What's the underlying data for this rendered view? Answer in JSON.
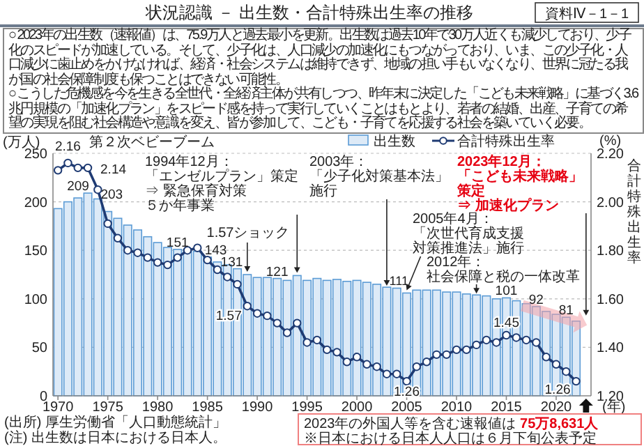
{
  "chart_data": {
    "type": "bar",
    "title": "状況認識 － 出生数・合計特殊出生率の推移",
    "subtitle": "資料Ⅳ－1－1",
    "ylabel": "(万人)",
    "y2label": "(%)",
    "xlabel": "(年)",
    "x": [
      1970,
      1971,
      1972,
      1973,
      1974,
      1975,
      1976,
      1977,
      1978,
      1979,
      1980,
      1981,
      1982,
      1983,
      1984,
      1985,
      1986,
      1987,
      1988,
      1989,
      1990,
      1991,
      1992,
      1993,
      1994,
      1995,
      1996,
      1997,
      1998,
      1999,
      2000,
      2001,
      2002,
      2003,
      2004,
      2005,
      2006,
      2007,
      2008,
      2009,
      2010,
      2011,
      2012,
      2013,
      2014,
      2015,
      2016,
      2017,
      2018,
      2019,
      2020,
      2021,
      2022
    ],
    "series": [
      {
        "name": "出生数",
        "color": "#ddeaf7",
        "values": [
          193,
          200,
          204,
          209,
          203,
          190,
          183,
          176,
          171,
          164,
          158,
          153,
          151,
          151,
          149,
          143,
          138,
          135,
          131,
          125,
          122,
          122,
          121,
          119,
          124,
          119,
          121,
          119,
          120,
          118,
          119,
          117,
          115,
          112,
          111,
          106,
          109,
          109,
          109,
          107,
          107,
          105,
          104,
          103,
          100,
          101,
          98,
          95,
          92,
          87,
          84,
          81,
          77
        ],
        "value_labels": [
          null,
          null,
          null,
          "209",
          "203",
          null,
          null,
          null,
          null,
          null,
          null,
          null,
          "151",
          null,
          null,
          "143",
          null,
          null,
          "131",
          null,
          null,
          null,
          "121",
          null,
          null,
          null,
          null,
          null,
          null,
          null,
          null,
          null,
          null,
          null,
          "111",
          null,
          null,
          null,
          null,
          null,
          null,
          null,
          null,
          null,
          null,
          "101",
          null,
          null,
          "92",
          null,
          null,
          "81",
          null
        ]
      },
      {
        "name": "合計特殊出生率",
        "type": "line",
        "axis": "y2",
        "color": "#1f3b73",
        "values": [
          2.13,
          2.16,
          2.14,
          2.14,
          2.05,
          1.91,
          1.85,
          1.8,
          1.79,
          1.77,
          1.75,
          1.74,
          1.77,
          1.8,
          1.81,
          1.76,
          1.72,
          1.69,
          1.66,
          1.57,
          1.54,
          1.53,
          1.5,
          1.46,
          1.5,
          1.42,
          1.43,
          1.39,
          1.38,
          1.34,
          1.36,
          1.33,
          1.32,
          1.29,
          1.29,
          1.26,
          1.32,
          1.34,
          1.37,
          1.37,
          1.39,
          1.39,
          1.41,
          1.43,
          1.42,
          1.45,
          1.44,
          1.43,
          1.42,
          1.36,
          1.33,
          1.3,
          1.26
        ],
        "value_labels": [
          null,
          "2.16",
          null,
          "2.14",
          null,
          null,
          null,
          null,
          null,
          null,
          null,
          null,
          null,
          null,
          null,
          null,
          null,
          null,
          null,
          "1.57",
          null,
          null,
          null,
          null,
          null,
          null,
          null,
          null,
          null,
          null,
          null,
          null,
          null,
          null,
          null,
          "1.26",
          null,
          null,
          null,
          null,
          null,
          null,
          null,
          null,
          null,
          "1.45",
          null,
          null,
          null,
          null,
          null,
          null,
          "1.26"
        ]
      }
    ],
    "xlim": [
      1969.5,
      2023.5
    ],
    "xticks": [
      1970,
      1975,
      1980,
      1985,
      1990,
      1995,
      2000,
      2005,
      2010,
      2015,
      2020
    ],
    "ylim": [
      0,
      250
    ],
    "yticks": [
      0,
      50,
      100,
      150,
      200,
      250
    ],
    "y2lim": [
      1.2,
      2.2
    ],
    "y2ticks": [
      {
        "value": 1.2,
        "label": "1.20"
      },
      {
        "value": 1.4,
        "label": "1.40"
      },
      {
        "value": 1.6,
        "label": "1.60"
      },
      {
        "value": 1.8,
        "label": "1.80"
      },
      {
        "value": 2.0,
        "label": "2.00"
      },
      {
        "value": 2.2,
        "label": "2.20"
      }
    ],
    "grid": "y",
    "legend": "top right",
    "marker": "circle",
    "line_style": "solid",
    "annotations": [
      "○ 2023年の出生数（速報値）は、75.9万人と過去最小を更新。出生数は過去10年で30万人近くも減少しており、少子化のスピードが加速している。そして、少子化は、人口減少の加速化にもつながっており、いま、この少子化・人口減少に歯止めをかけなければ、経済・社会システムは維持できず、地域の担い手もいなくなり、世界に冠たる我が国の社会保障制度も保つことはできない可能性。",
      "○ こうした危機感を今を生きる全世代・全経済主体が共有しつつ、昨年末に決定した「こども未来戦略」に基づく3.6兆円規模の「加速化プラン」をスピード感を持って実行していくことはもとより、若者の結婚、出産、子育ての希望の実現を阻む社会構造や意識を変え、皆が参加して、こども・子育てを応援する社会を築いていく必要。",
      "第２次ベビーブーム",
      {
        "text": "1.57ショック",
        "x": 1989,
        "y": 125
      },
      {
        "text": "1994年12月：「エンゼルプラン」策定⇒ 緊急保育対策５か年事業",
        "x": 1994,
        "y": 124
      },
      {
        "text": "2003年：「少子化対策基本法」施行",
        "x": 2003,
        "y": 112
      },
      {
        "text": "2005年4月：「次世代育成支援対策推進法」施行",
        "x": 2005,
        "y": 106
      },
      {
        "text": "2012年：社会保障と税の一体改革",
        "x": 2012,
        "y": 104
      },
      {
        "text": "2023年12月：「こども未来戦略」策定⇒ 加速化プラン",
        "x": 2023,
        "y": 80
      },
      "(出所) 厚生労働省「人口動態統計」",
      "(注) 出生数は日本における日本人。",
      "2023年の外国人等を含む速報値は 75万8,631人",
      "※日本における日本人人口は６月下旬公表予定",
      "合計特殊出生率"
    ]
  }
}
